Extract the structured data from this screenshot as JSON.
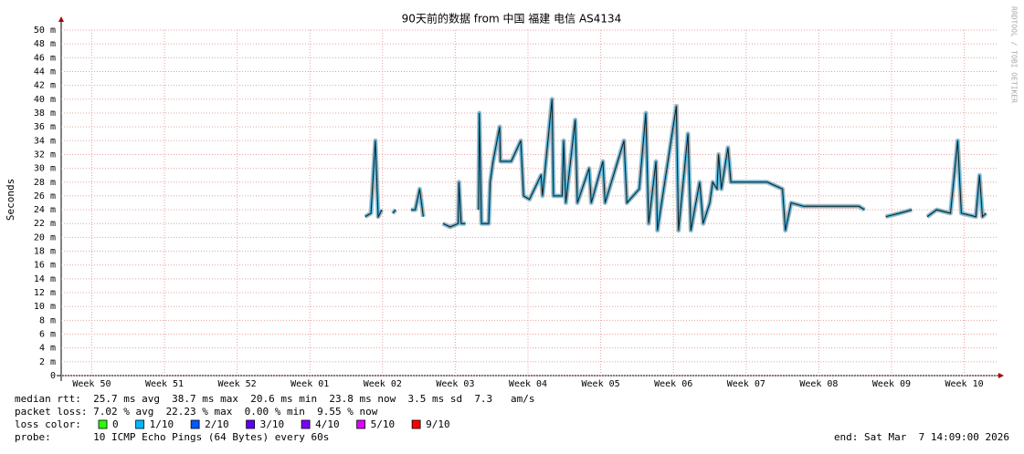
{
  "chart_data": {
    "type": "line",
    "title": "90天前的数据 from 中国 福建 电信 AS4134",
    "y_label": "Seconds",
    "side_text": "RRDTOOL / TOBI OETIKER",
    "xlim": [
      0,
      12.89
    ],
    "xticks": [
      {
        "value": 0.42,
        "label": "Week 50"
      },
      {
        "value": 1.42,
        "label": "Week 51"
      },
      {
        "value": 2.42,
        "label": "Week 52"
      },
      {
        "value": 3.42,
        "label": "Week 01"
      },
      {
        "value": 4.42,
        "label": "Week 02"
      },
      {
        "value": 5.42,
        "label": "Week 03"
      },
      {
        "value": 6.42,
        "label": "Week 04"
      },
      {
        "value": 7.42,
        "label": "Week 05"
      },
      {
        "value": 8.42,
        "label": "Week 06"
      },
      {
        "value": 9.42,
        "label": "Week 07"
      },
      {
        "value": 10.42,
        "label": "Week 08"
      },
      {
        "value": 11.42,
        "label": "Week 09"
      },
      {
        "value": 12.42,
        "label": "Week 10"
      }
    ],
    "ylim": [
      0,
      50
    ],
    "yticks": [
      0,
      {
        "value": 2,
        "label": "2 m"
      },
      {
        "value": 4,
        "label": "4 m"
      },
      {
        "value": 6,
        "label": "6 m"
      },
      {
        "value": 8,
        "label": "8 m"
      },
      {
        "value": 10,
        "label": "10 m"
      },
      {
        "value": 12,
        "label": "12 m"
      },
      {
        "value": 14,
        "label": "14 m"
      },
      {
        "value": 16,
        "label": "16 m"
      },
      {
        "value": 18,
        "label": "18 m"
      },
      {
        "value": 20,
        "label": "20 m"
      },
      {
        "value": 22,
        "label": "22 m"
      },
      {
        "value": 24,
        "label": "24 m"
      },
      {
        "value": 26,
        "label": "26 m"
      },
      {
        "value": 28,
        "label": "28 m"
      },
      {
        "value": 30,
        "label": "30 m"
      },
      {
        "value": 32,
        "label": "32 m"
      },
      {
        "value": 34,
        "label": "34 m"
      },
      {
        "value": 36,
        "label": "36 m"
      },
      {
        "value": 38,
        "label": "38 m"
      },
      {
        "value": 40,
        "label": "40 m"
      },
      {
        "value": 42,
        "label": "42 m"
      },
      {
        "value": 44,
        "label": "44 m"
      },
      {
        "value": 46,
        "label": "46 m"
      },
      {
        "value": 48,
        "label": "48 m"
      },
      {
        "value": 50,
        "label": "50 m"
      }
    ],
    "grid": true,
    "x": [
      4.18,
      4.26,
      4.32,
      4.36,
      4.41,
      4.5,
      4.56,
      4.6,
      4.7,
      4.81,
      4.87,
      4.93,
      4.98,
      5.1,
      5.25,
      5.35,
      5.46,
      5.47,
      5.5,
      5.56,
      5.65,
      5.74,
      5.75,
      5.78,
      5.88,
      5.9,
      5.94,
      6.03,
      6.04,
      6.19,
      6.32,
      6.36,
      6.44,
      6.6,
      6.62,
      6.75,
      6.77,
      6.89,
      6.91,
      6.94,
      7.07,
      7.1,
      7.26,
      7.29,
      7.45,
      7.48,
      7.74,
      7.78,
      7.95,
      8.04,
      8.08,
      8.18,
      8.2,
      8.46,
      8.49,
      8.62,
      8.66,
      8.78,
      8.83,
      8.92,
      8.96,
      9.02,
      9.04,
      9.08,
      9.17,
      9.21,
      9.46,
      9.71,
      9.92,
      9.96,
      10.04,
      10.21,
      10.46,
      10.72,
      10.97,
      11.05,
      11.2,
      11.34,
      11.53,
      11.7,
      11.8,
      11.91,
      12.04,
      12.23,
      12.33,
      12.38,
      12.58,
      12.63,
      12.67,
      12.72
    ],
    "series": [
      {
        "color": "#1a1a1a",
        "values": [
          23,
          23.5,
          34,
          23,
          24,
          null,
          23.5,
          24,
          null,
          24,
          24,
          27,
          23,
          null,
          22,
          21.5,
          22,
          28,
          22,
          22,
          null,
          24,
          38,
          22,
          22,
          28,
          31,
          36,
          31,
          31,
          34,
          26,
          25.5,
          29,
          26,
          40,
          26,
          26,
          34,
          25,
          37,
          25,
          30,
          25,
          31,
          25,
          34,
          25,
          27,
          38,
          22,
          31,
          21,
          39,
          21,
          35,
          21,
          28,
          22,
          25,
          28,
          27,
          32,
          27,
          33,
          28,
          28,
          28,
          27,
          21,
          25,
          24.5,
          24.5,
          24.5,
          24.5,
          24,
          null,
          23,
          23.5,
          24,
          null,
          23,
          24,
          23.5,
          34,
          23.5,
          23,
          29,
          23,
          23.5
        ]
      }
    ],
    "stats": [
      "median rtt:  25.7 ms avg  38.7 ms max  20.6 ms min  23.8 ms now  3.5 ms sd  7.3   am/s",
      "packet loss: 7.02 % avg  22.23 % max  0.00 % min  9.55 % now"
    ],
    "loss_label": "loss color:",
    "loss_colors": [
      {
        "name": "0",
        "color": "#26ff00"
      },
      {
        "name": "1/10",
        "color": "#00b8ff"
      },
      {
        "name": "2/10",
        "color": "#0059ff"
      },
      {
        "name": "3/10",
        "color": "#5e00ff"
      },
      {
        "name": "4/10",
        "color": "#7e00ff"
      },
      {
        "name": "5/10",
        "color": "#dd00ff"
      },
      {
        "name": "9/10",
        "color": "#ff0000"
      }
    ],
    "probe": "probe:       10 ICMP Echo Pings (64 Bytes) every 60s",
    "end": "end: Sat Mar  7 14:09:00 2026"
  }
}
